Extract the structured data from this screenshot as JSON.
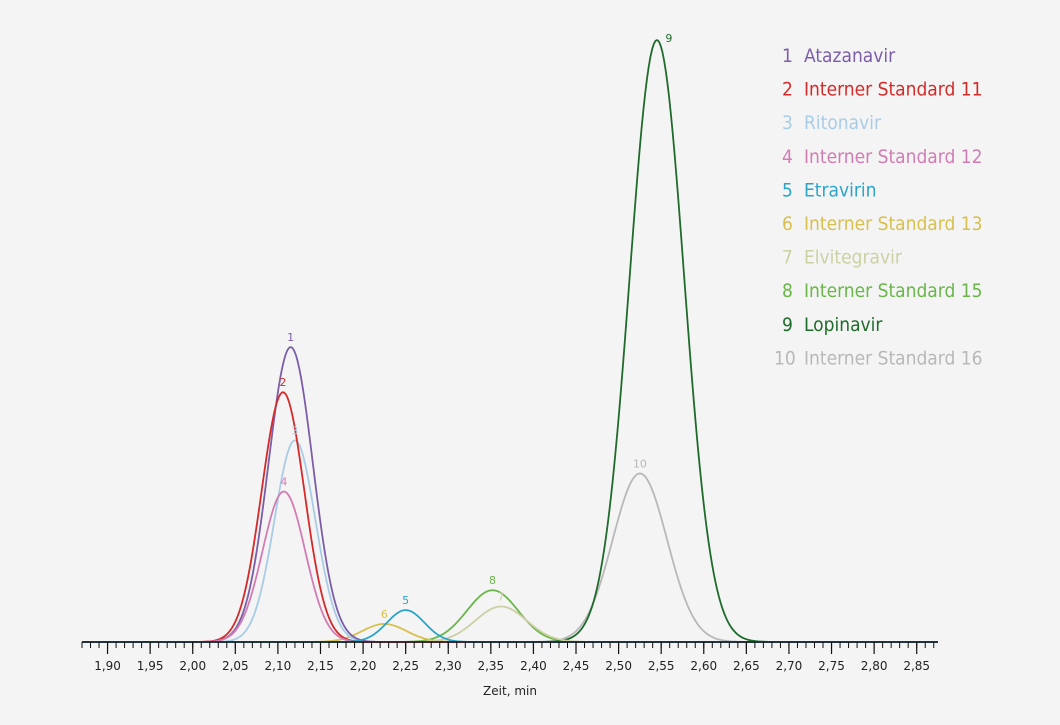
{
  "chart_data": {
    "type": "line",
    "title": "",
    "xlabel": "Zeit, min",
    "ylabel": "",
    "xlim": [
      1.87,
      2.875
    ],
    "ylim": [
      0,
      100
    ],
    "x_ticks": [
      1.9,
      1.95,
      2.0,
      2.05,
      2.1,
      2.15,
      2.2,
      2.25,
      2.3,
      2.35,
      2.4,
      2.45,
      2.5,
      2.55,
      2.6,
      2.65,
      2.7,
      2.75,
      2.8,
      2.85
    ],
    "x_tick_labels": [
      "1,90",
      "1,95",
      "2,00",
      "2,05",
      "2,10",
      "2,15",
      "2,20",
      "2,25",
      "2,30",
      "2,35",
      "2,40",
      "2,45",
      "2,50",
      "2,55",
      "2,60",
      "2,65",
      "2,70",
      "2,75",
      "2,80",
      "2,85"
    ],
    "minor_tick_step": 0.01,
    "grid": false,
    "legend": "top-right",
    "series": [
      {
        "id": "1",
        "name": "Atazanavir",
        "color": "#7b5ea7",
        "peak_x": 2.115,
        "peak_y": 49.0,
        "sigma": 0.026,
        "peak_label": "1"
      },
      {
        "id": "2",
        "name": "Interner Standard 11",
        "color": "#d42a2a",
        "peak_x": 2.106,
        "peak_y": 41.5,
        "sigma": 0.025,
        "peak_label": "2"
      },
      {
        "id": "3",
        "name": "Ritonavir",
        "color": "#a9cce6",
        "peak_x": 2.12,
        "peak_y": 33.5,
        "sigma": 0.024,
        "peak_label": "3"
      },
      {
        "id": "4",
        "name": "Interner Standard 12",
        "color": "#d27cb4",
        "peak_x": 2.107,
        "peak_y": 25.0,
        "sigma": 0.025,
        "peak_label": "4"
      },
      {
        "id": "5",
        "name": "Etravirin",
        "color": "#2aa5c8",
        "peak_x": 2.25,
        "peak_y": 5.3,
        "sigma": 0.022,
        "peak_label": "5"
      },
      {
        "id": "6",
        "name": "Interner Standard 13",
        "color": "#d8c04e",
        "peak_x": 2.225,
        "peak_y": 3.0,
        "sigma": 0.026,
        "peak_label": "6"
      },
      {
        "id": "7",
        "name": "Elvitegravir",
        "color": "#ccd0a2",
        "peak_x": 2.362,
        "peak_y": 5.9,
        "sigma": 0.03,
        "peak_label": "7"
      },
      {
        "id": "8",
        "name": "Interner Standard 15",
        "color": "#6ab64a",
        "peak_x": 2.352,
        "peak_y": 8.6,
        "sigma": 0.03,
        "peak_label": "8"
      },
      {
        "id": "9",
        "name": "Lopinavir",
        "color": "#1f6b2c",
        "peak_x": 2.545,
        "peak_y": 100.0,
        "sigma": 0.032,
        "peak_label": "9"
      },
      {
        "id": "10",
        "name": "Interner Standard 16",
        "color": "#b8b8b8",
        "peak_x": 2.525,
        "peak_y": 28.0,
        "sigma": 0.032,
        "peak_label": "10"
      }
    ]
  }
}
